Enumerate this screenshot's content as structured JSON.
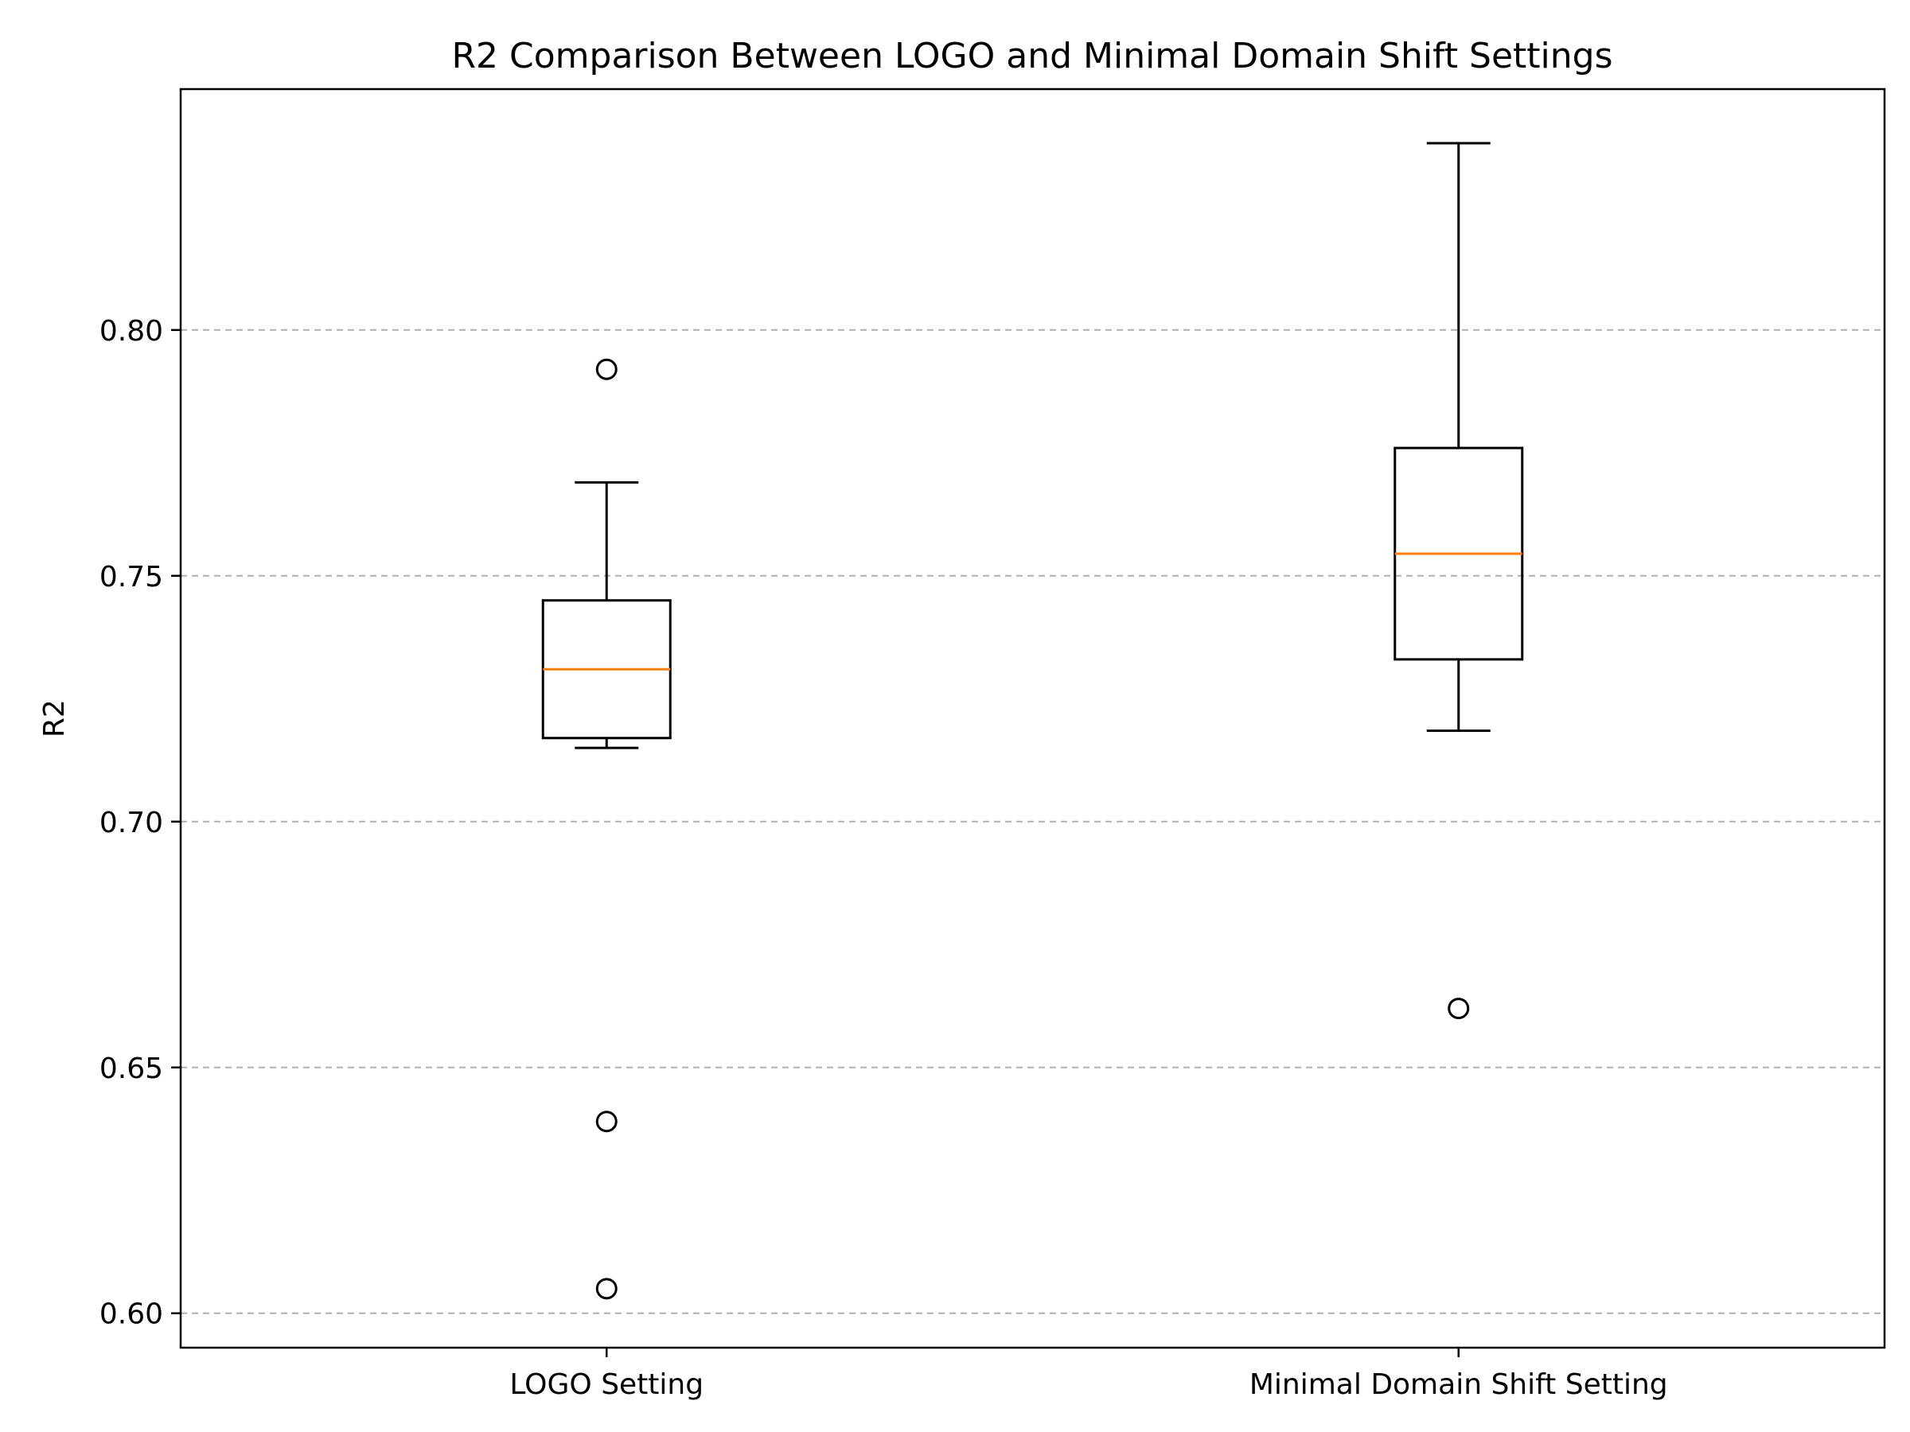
{
  "chart_data": {
    "type": "box",
    "title": "R2 Comparison Between LOGO and Minimal Domain Shift Settings",
    "xlabel": "",
    "ylabel": "R2",
    "ylim": [
      0.593,
      0.849
    ],
    "yticks": [
      0.6,
      0.65,
      0.7,
      0.75,
      0.8
    ],
    "ytick_labels": [
      "0.60",
      "0.65",
      "0.70",
      "0.75",
      "0.80"
    ],
    "grid": {
      "axis": "y",
      "style": "dashed"
    },
    "categories": [
      "LOGO Setting",
      "Minimal Domain Shift Setting"
    ],
    "boxes": [
      {
        "name": "LOGO Setting",
        "whisker_low": 0.715,
        "q1": 0.717,
        "median": 0.731,
        "q3": 0.745,
        "whisker_high": 0.769,
        "outliers": [
          0.792,
          0.639,
          0.605
        ]
      },
      {
        "name": "Minimal Domain Shift Setting",
        "whisker_low": 0.7185,
        "q1": 0.733,
        "median": 0.7545,
        "q3": 0.776,
        "whisker_high": 0.838,
        "outliers": [
          0.662
        ]
      }
    ],
    "colors": {
      "box": "#000000",
      "median": "#ff7f0e",
      "grid": "#b0b0b0",
      "outlier": "#000000"
    }
  }
}
